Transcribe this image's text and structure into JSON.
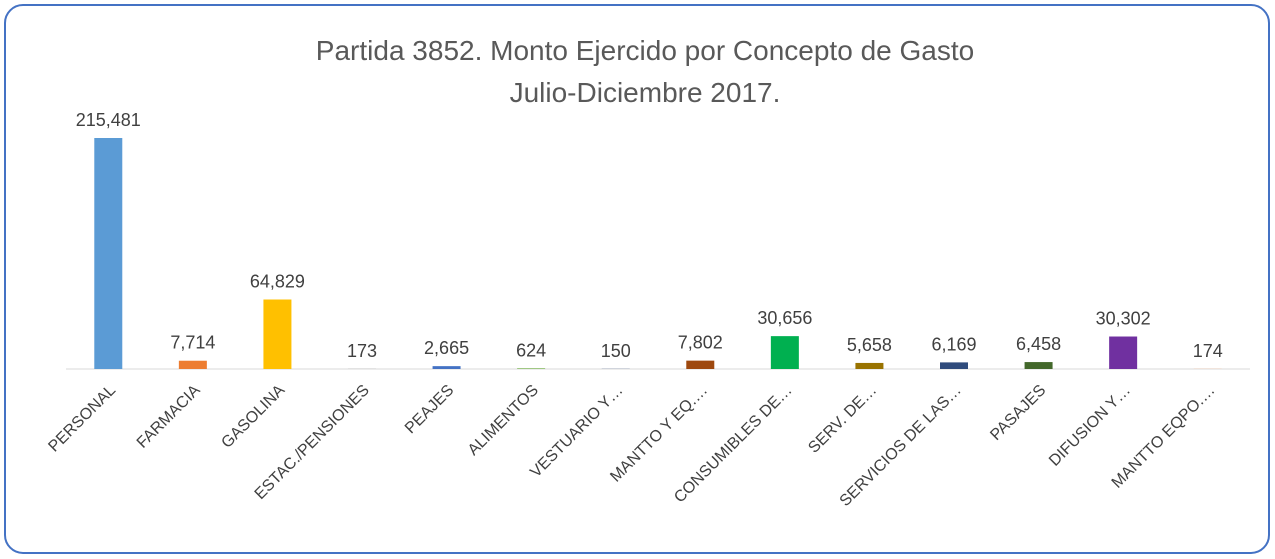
{
  "chart_data": {
    "type": "bar",
    "title": [
      "Partida 3852. Monto Ejercido por Concepto de Gasto",
      "Julio-Diciembre 2017."
    ],
    "categories": [
      "PERSONAL",
      "FARMACIA",
      "GASOLINA",
      "ESTAC./PENSIONES",
      "PEAJES",
      "ALIMENTOS",
      "VESTUARIO Y…",
      "MANTTO Y EQ.…",
      "CONSUMIBLES DE…",
      "SERV. DE…",
      "SERVICIOS DE LAS…",
      "PASAJES",
      "DIFUSION Y…",
      "MANTTO EQPO.…"
    ],
    "values": [
      215481,
      7714,
      64829,
      173,
      2665,
      624,
      150,
      7802,
      30656,
      5658,
      6169,
      6458,
      30302,
      174
    ],
    "value_labels": [
      "215,481",
      "7,714",
      "64,829",
      "173",
      "2,665",
      "624",
      "150",
      "7,802",
      "30,656",
      "5,658",
      "6,169",
      "6,458",
      "30,302",
      "174"
    ],
    "colors": [
      "#5b9bd5",
      "#ed7d31",
      "#ffc000",
      "#a5a5a5",
      "#4472c4",
      "#70ad47",
      "#264478",
      "#9e480e",
      "#00b050",
      "#997300",
      "#2f4b7c",
      "#43682b",
      "#7030a0",
      "#f4b183"
    ]
  }
}
